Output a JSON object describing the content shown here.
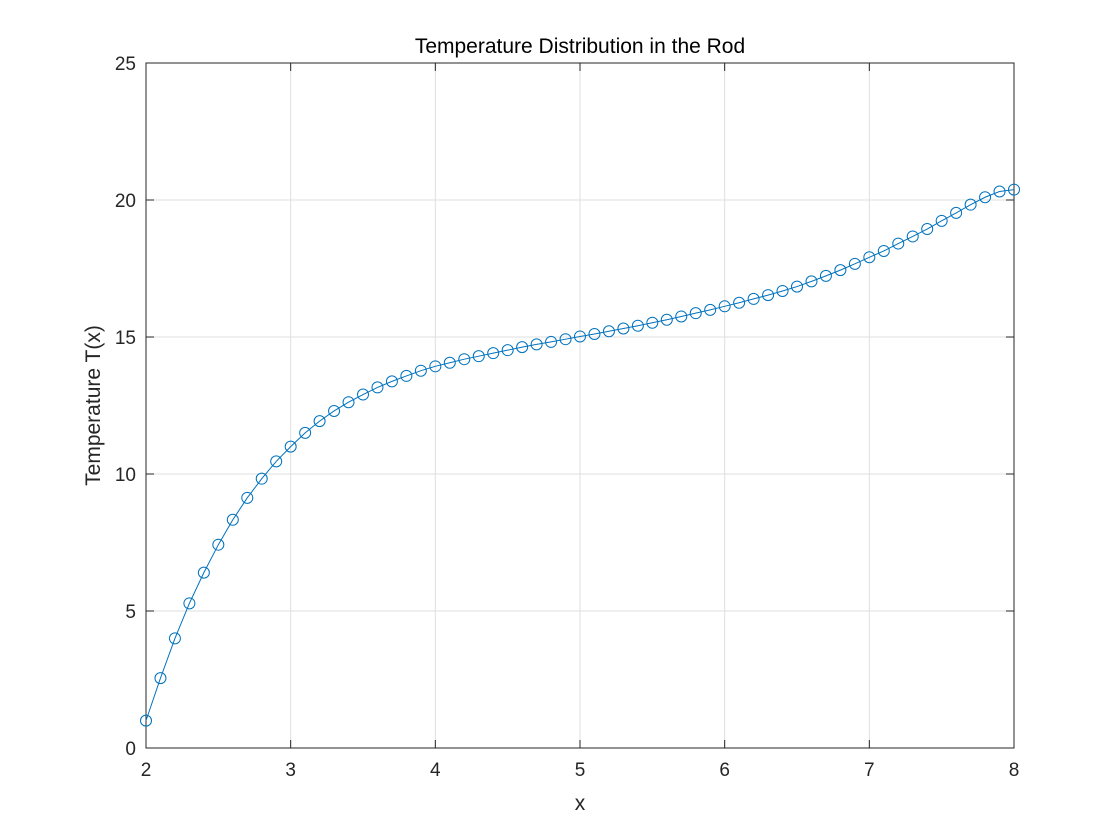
{
  "chart_data": {
    "type": "line",
    "title": "Temperature Distribution in the Rod",
    "xlabel": "x",
    "ylabel": "Temperature T(x)",
    "xlim": [
      2,
      8
    ],
    "ylim": [
      0,
      25
    ],
    "xticks": [
      2,
      3,
      4,
      5,
      6,
      7,
      8
    ],
    "yticks": [
      0,
      5,
      10,
      15,
      20,
      25
    ],
    "grid": true,
    "marker": "circle",
    "line_color": "#0072BD",
    "series": [
      {
        "name": "T(x)",
        "x": [
          2.0,
          2.1,
          2.2,
          2.3,
          2.4,
          2.5,
          2.6,
          2.7,
          2.8,
          2.9,
          3.0,
          3.1,
          3.2,
          3.3,
          3.4,
          3.5,
          3.6,
          3.7,
          3.8,
          3.9,
          4.0,
          4.1,
          4.2,
          4.3,
          4.4,
          4.5,
          4.6,
          4.7,
          4.8,
          4.9,
          5.0,
          5.1,
          5.2,
          5.3,
          5.4,
          5.5,
          5.6,
          5.7,
          5.8,
          5.9,
          6.0,
          6.1,
          6.2,
          6.3,
          6.4,
          6.5,
          6.6,
          6.7,
          6.8,
          6.9,
          7.0,
          7.1,
          7.2,
          7.3,
          7.4,
          7.5,
          7.6,
          7.7,
          7.8,
          7.9,
          8.0
        ],
        "y": [
          1.0,
          2.55,
          4.0,
          5.28,
          6.4,
          7.42,
          8.33,
          9.13,
          9.83,
          10.46,
          11.0,
          11.5,
          11.93,
          12.3,
          12.62,
          12.9,
          13.16,
          13.38,
          13.58,
          13.77,
          13.93,
          14.06,
          14.19,
          14.3,
          14.41,
          14.52,
          14.63,
          14.73,
          14.82,
          14.92,
          15.02,
          15.11,
          15.21,
          15.31,
          15.41,
          15.52,
          15.63,
          15.75,
          15.87,
          15.99,
          16.12,
          16.25,
          16.39,
          16.53,
          16.68,
          16.84,
          17.03,
          17.23,
          17.44,
          17.67,
          17.91,
          18.14,
          18.41,
          18.67,
          18.94,
          19.24,
          19.53,
          19.83,
          20.1,
          20.31,
          20.38
        ]
      }
    ]
  }
}
